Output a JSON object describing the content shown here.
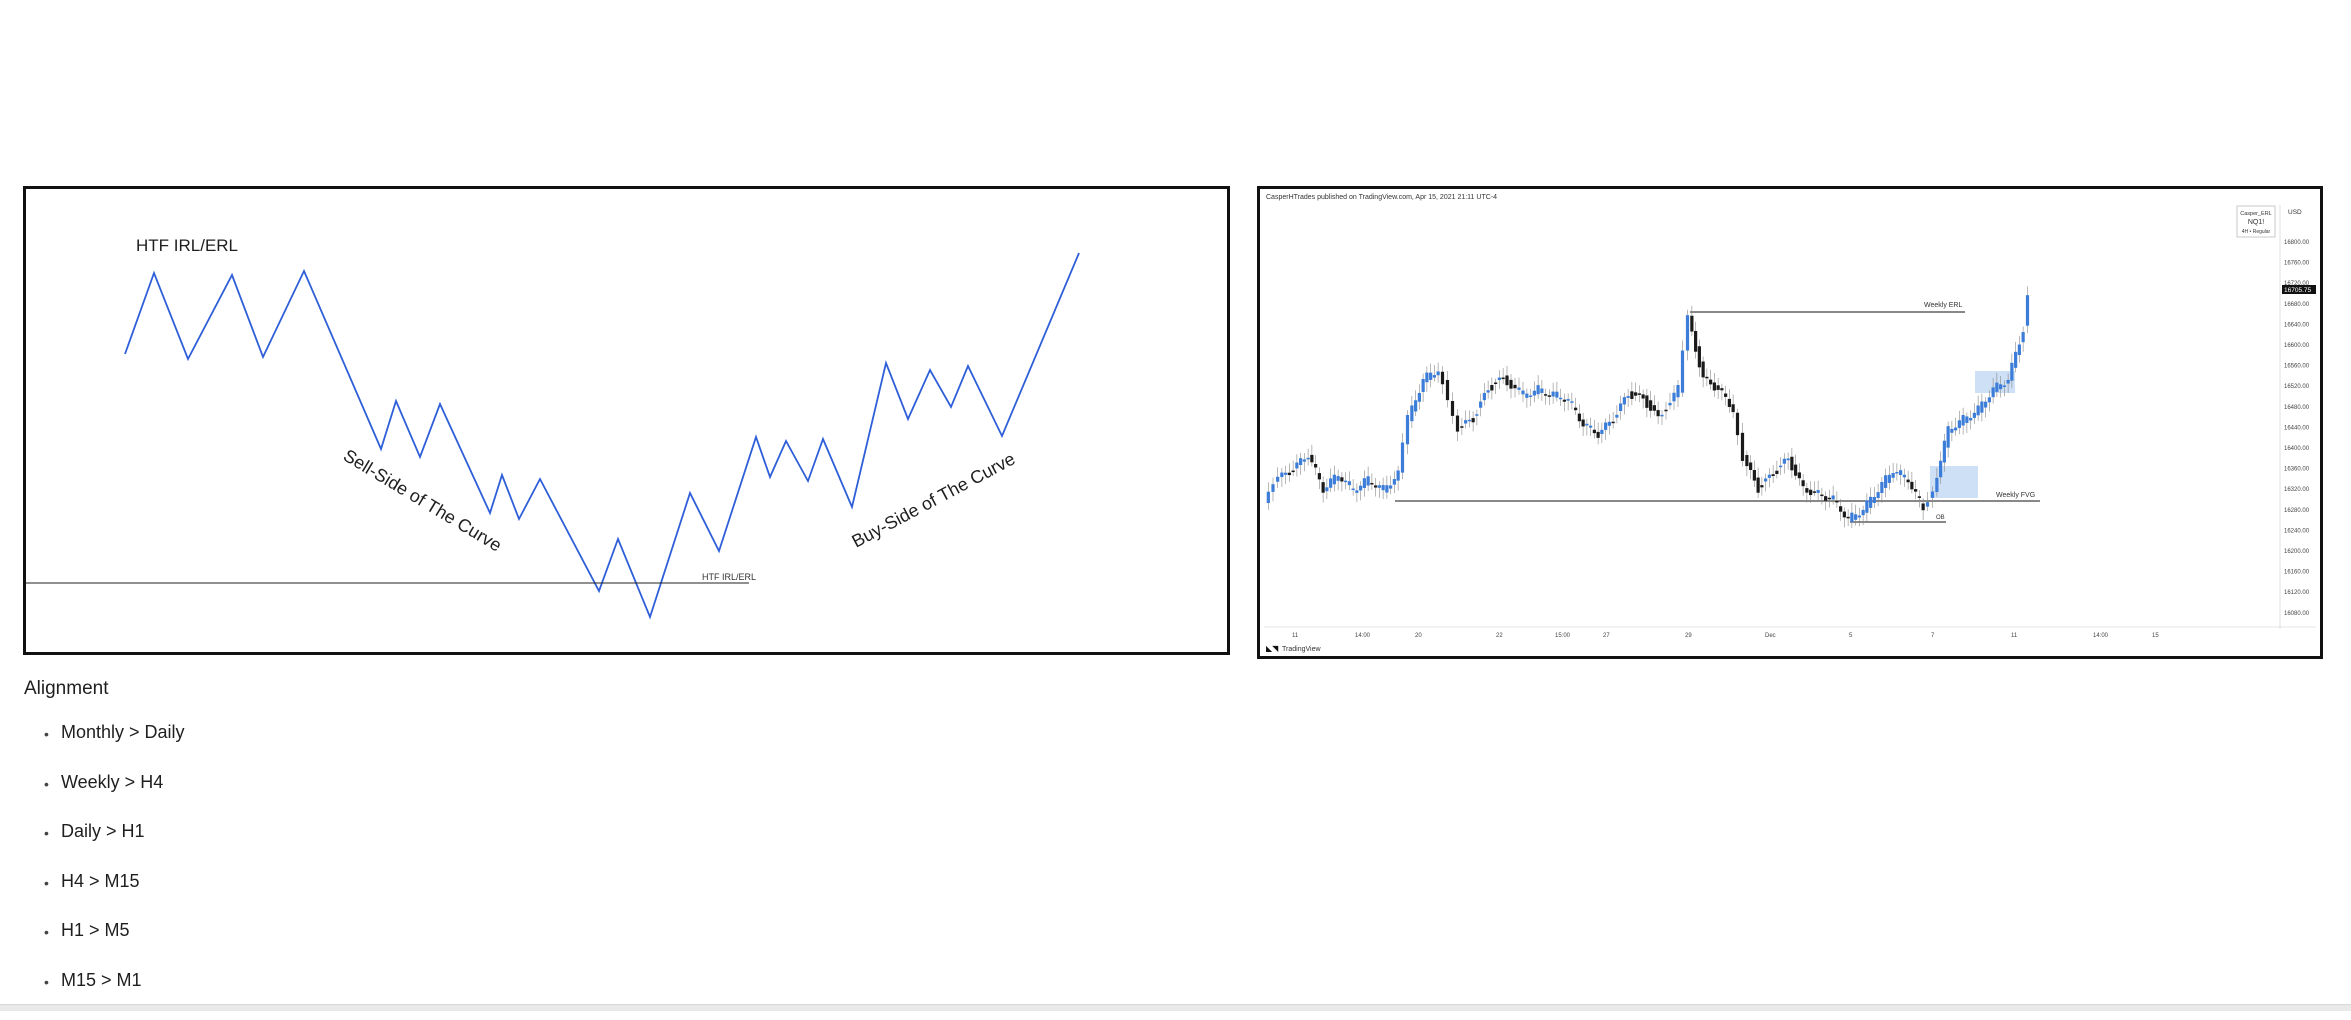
{
  "diagram": {
    "title": "HTF IRL/ERL",
    "sell_label": "Sell-Side of The Curve",
    "buy_label": "Buy-Side of The Curve",
    "level_label": "HTF IRL/ERL",
    "line_color": "#2f5fd8"
  },
  "chart": {
    "header": "CasperHTrades published on TradingView.com, Apr 15, 2021 21:11 UTC-4",
    "symbol_box": {
      "line1": "Casper_ERL",
      "line2": "NQ1!",
      "line3": "4H • Regular"
    },
    "currency": "USD",
    "price_labels": [
      "16800.00",
      "16760.00",
      "16720.00",
      "16680.00",
      "16640.00",
      "16600.00",
      "16560.00",
      "16520.00",
      "16480.00",
      "16440.00",
      "16400.00",
      "16360.00",
      "16320.00",
      "16280.00",
      "16240.00",
      "16200.00",
      "16160.00",
      "16120.00",
      "16080.00"
    ],
    "last_price": "16705.75",
    "time_labels": [
      "11",
      "14:00",
      "20",
      "22",
      "15:00",
      "27",
      "29",
      "Dec",
      "5",
      "7",
      "11",
      "14:00",
      "15"
    ],
    "weekly_erl_label": "Weekly ERL",
    "weekly_fvg_label": "Weekly FVG",
    "ob_label": "OB",
    "brand": "TradingView",
    "bull_color": "#3b7dd8",
    "bear_color": "#1a1a1a"
  },
  "alignment": {
    "title": "Alignment",
    "items": [
      "Monthly > Daily",
      "Weekly > H4",
      "Daily > H1",
      "H4 > M15",
      "H1 > M5",
      "M15 > M1"
    ]
  }
}
